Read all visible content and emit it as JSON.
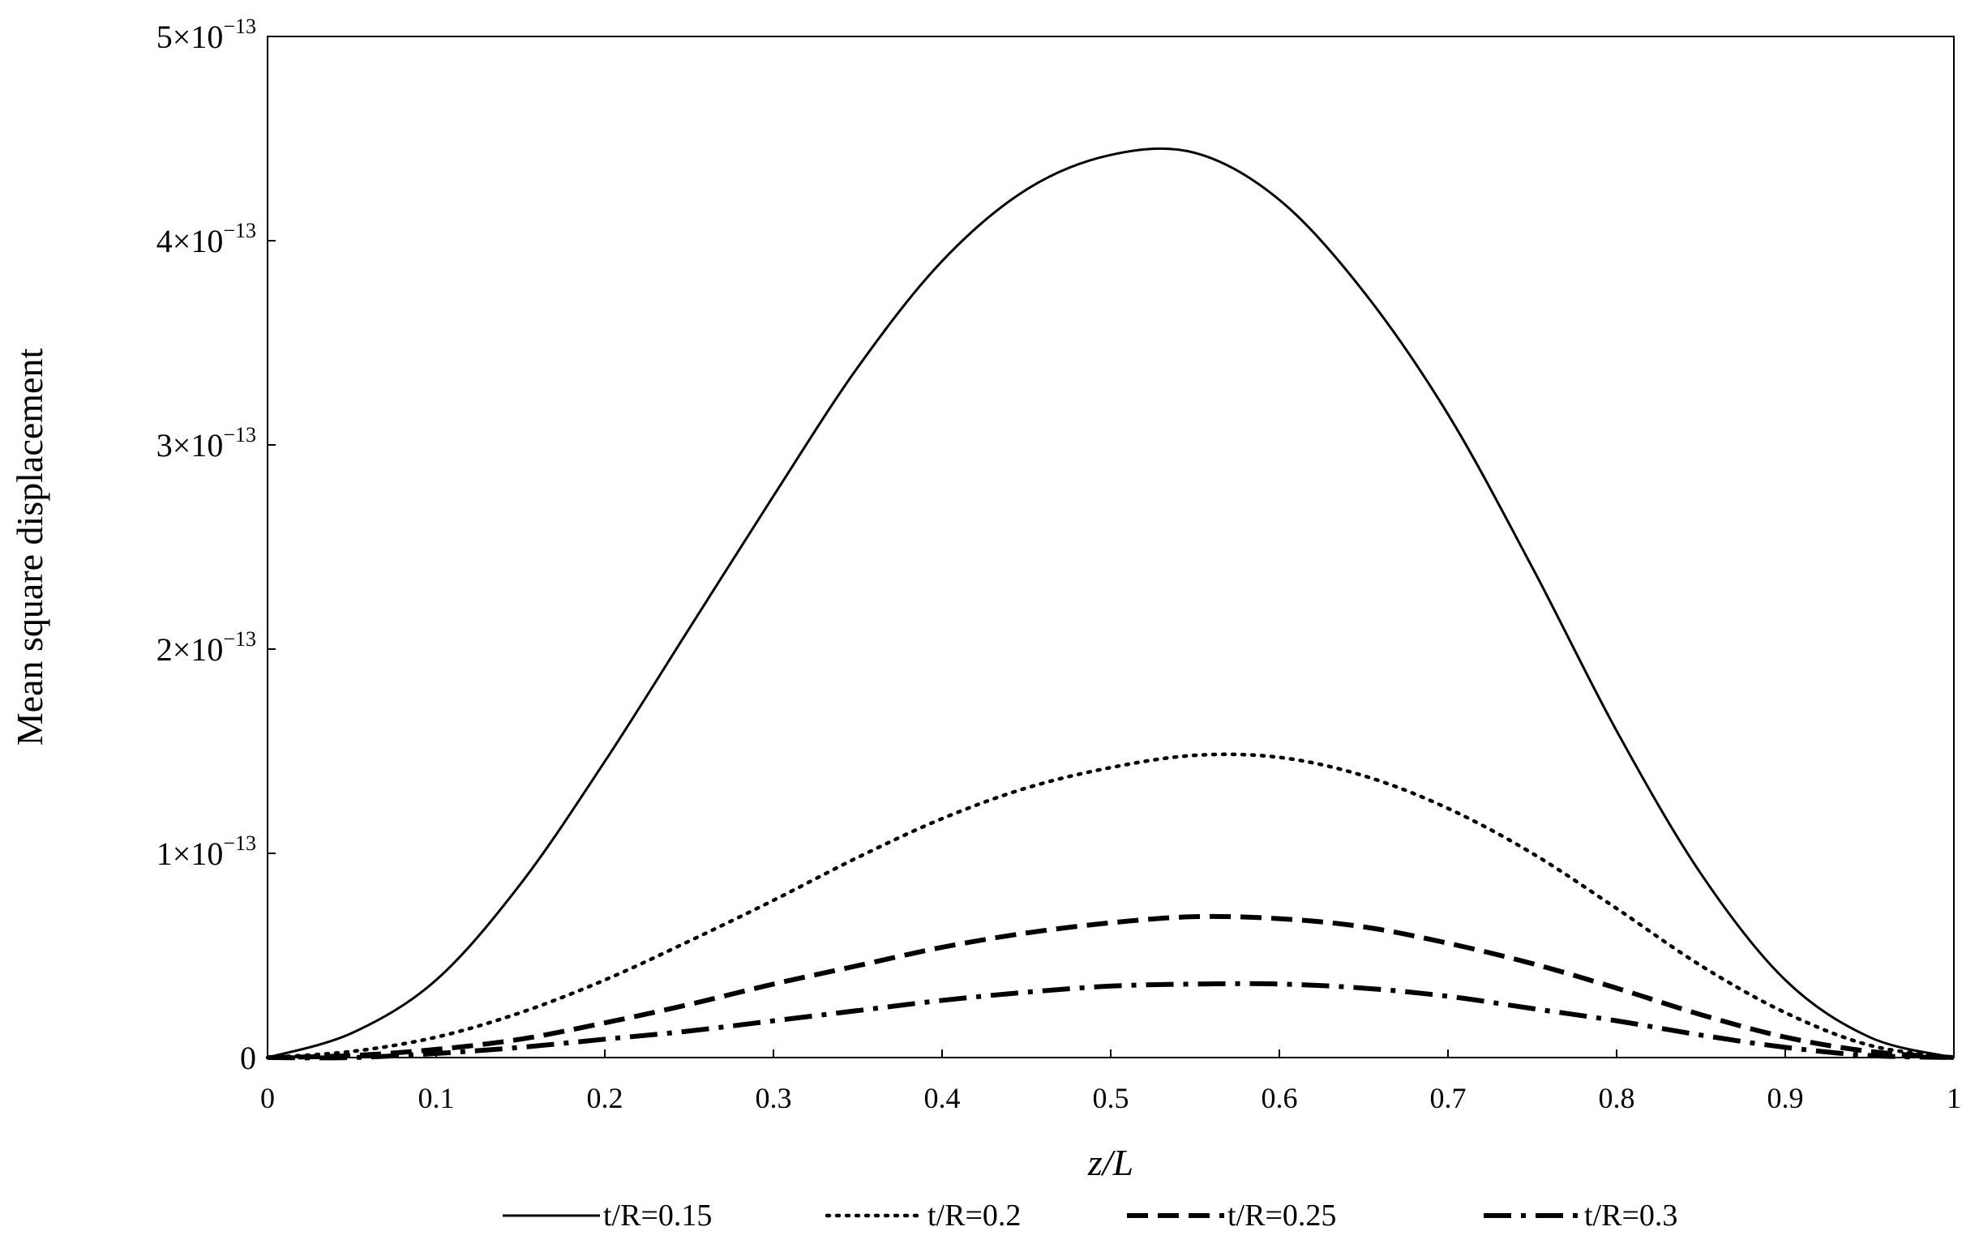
{
  "chart_data": {
    "type": "line",
    "title": "",
    "xlabel": "z/L",
    "ylabel": "Mean square displacement",
    "xlim": [
      0,
      1
    ],
    "ylim": [
      0,
      5e-13
    ],
    "grid": false,
    "legend_position": "bottom",
    "x_ticks": [
      "0",
      "0.1",
      "0.2",
      "0.3",
      "0.4",
      "0.5",
      "0.6",
      "0.7",
      "0.8",
      "0.9",
      "1"
    ],
    "y_ticks": [
      {
        "value": 0,
        "label": "0"
      },
      {
        "value": 1e-13,
        "mantissa": "1",
        "times": "×",
        "base": "10",
        "exponent": "−13"
      },
      {
        "value": 2e-13,
        "mantissa": "2",
        "times": "×",
        "base": "10",
        "exponent": "−13"
      },
      {
        "value": 3e-13,
        "mantissa": "3",
        "times": "×",
        "base": "10",
        "exponent": "−13"
      },
      {
        "value": 4e-13,
        "mantissa": "4",
        "times": "×",
        "base": "10",
        "exponent": "−13"
      },
      {
        "value": 5e-13,
        "mantissa": "5",
        "times": "×",
        "base": "10",
        "exponent": "−13"
      }
    ],
    "x": [
      0,
      0.05,
      0.1,
      0.15,
      0.2,
      0.25,
      0.3,
      0.35,
      0.4,
      0.45,
      0.5,
      0.55,
      0.6,
      0.65,
      0.7,
      0.75,
      0.8,
      0.85,
      0.9,
      0.95,
      1
    ],
    "series": [
      {
        "name": "t/R=0.15",
        "style": "solid",
        "values": [
          0,
          1.2e-14,
          3.8e-14,
          8.5e-14,
          1.45e-13,
          2.1e-13,
          2.75e-13,
          3.38e-13,
          3.9e-13,
          4.25e-13,
          4.42e-13,
          4.43e-13,
          4.2e-13,
          3.75e-13,
          3.15e-13,
          2.4e-13,
          1.6e-13,
          9e-14,
          3.8e-14,
          1e-14,
          0
        ]
      },
      {
        "name": "t/R=0.2",
        "style": "dotted",
        "values": [
          0,
          3e-15,
          1e-14,
          2.2e-14,
          3.8e-14,
          5.7e-14,
          7.7e-14,
          9.8e-14,
          1.17e-13,
          1.32e-13,
          1.42e-13,
          1.48e-13,
          1.47e-13,
          1.38e-13,
          1.22e-13,
          1e-13,
          7.3e-14,
          4.5e-14,
          2.2e-14,
          6e-15,
          0
        ]
      },
      {
        "name": "t/R=0.25",
        "style": "dashed",
        "values": [
          0,
          1e-15,
          4e-15,
          9e-15,
          1.7e-14,
          2.6e-14,
          3.6e-14,
          4.5e-14,
          5.4e-14,
          6.1e-14,
          6.6e-14,
          6.9e-14,
          6.8e-14,
          6.4e-14,
          5.6e-14,
          4.6e-14,
          3.4e-14,
          2.1e-14,
          1e-14,
          3e-15,
          0
        ]
      },
      {
        "name": "t/R=0.3",
        "style": "dashdot",
        "values": [
          0,
          0.0,
          2e-15,
          5e-15,
          9e-15,
          1.3e-14,
          1.8e-14,
          2.3e-14,
          2.8e-14,
          3.2e-14,
          3.5e-14,
          3.6e-14,
          3.6e-14,
          3.4e-14,
          3e-14,
          2.4e-14,
          1.8e-14,
          1.1e-14,
          5e-15,
          1e-15,
          0
        ]
      }
    ]
  }
}
